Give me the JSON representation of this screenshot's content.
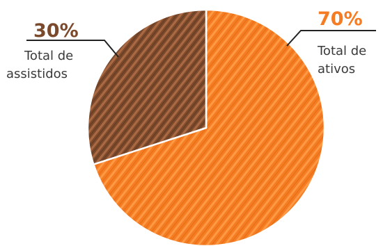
{
  "chart_data": {
    "type": "pie",
    "slices": [
      {
        "value": 70,
        "pct_label": "70%",
        "label_line1": "Total de",
        "label_line2": "ativos",
        "color": "#f57c22",
        "hatch_color": "#ffa04a"
      },
      {
        "value": 30,
        "pct_label": "30%",
        "label_line1": "Total de",
        "label_line2": "assistidos",
        "color": "#7b4a2c",
        "hatch_color": "#b06d45"
      }
    ]
  }
}
